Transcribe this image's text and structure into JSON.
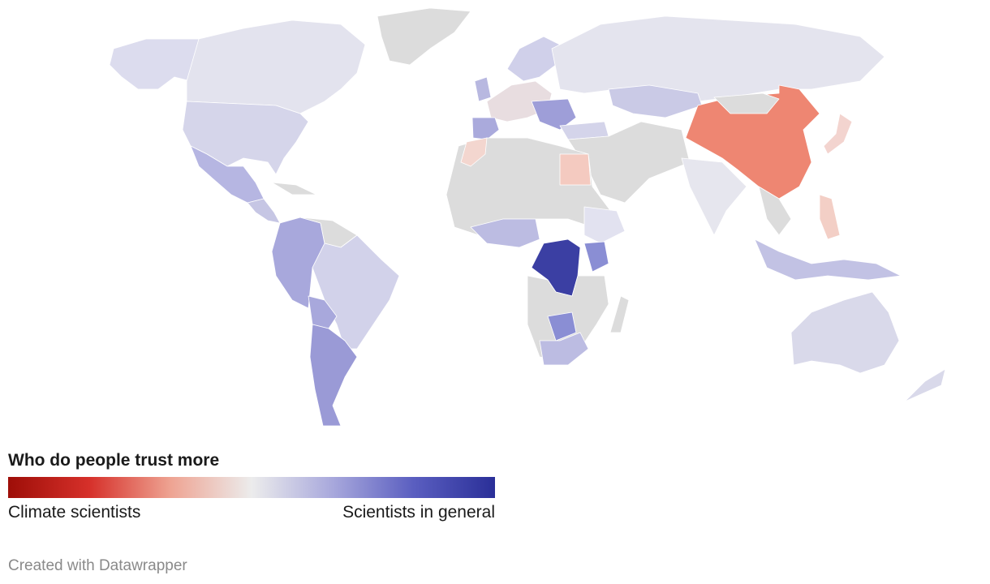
{
  "legend": {
    "title": "Who do people trust more",
    "low_label": "Climate scientists",
    "high_label": "Scientists in general",
    "colors": [
      "#9e0e08",
      "#d6302a",
      "#eea392",
      "#ececec",
      "#a8a8dc",
      "#5a5ec0",
      "#2a2f98"
    ]
  },
  "credit": "Created with Datawrapper"
}
